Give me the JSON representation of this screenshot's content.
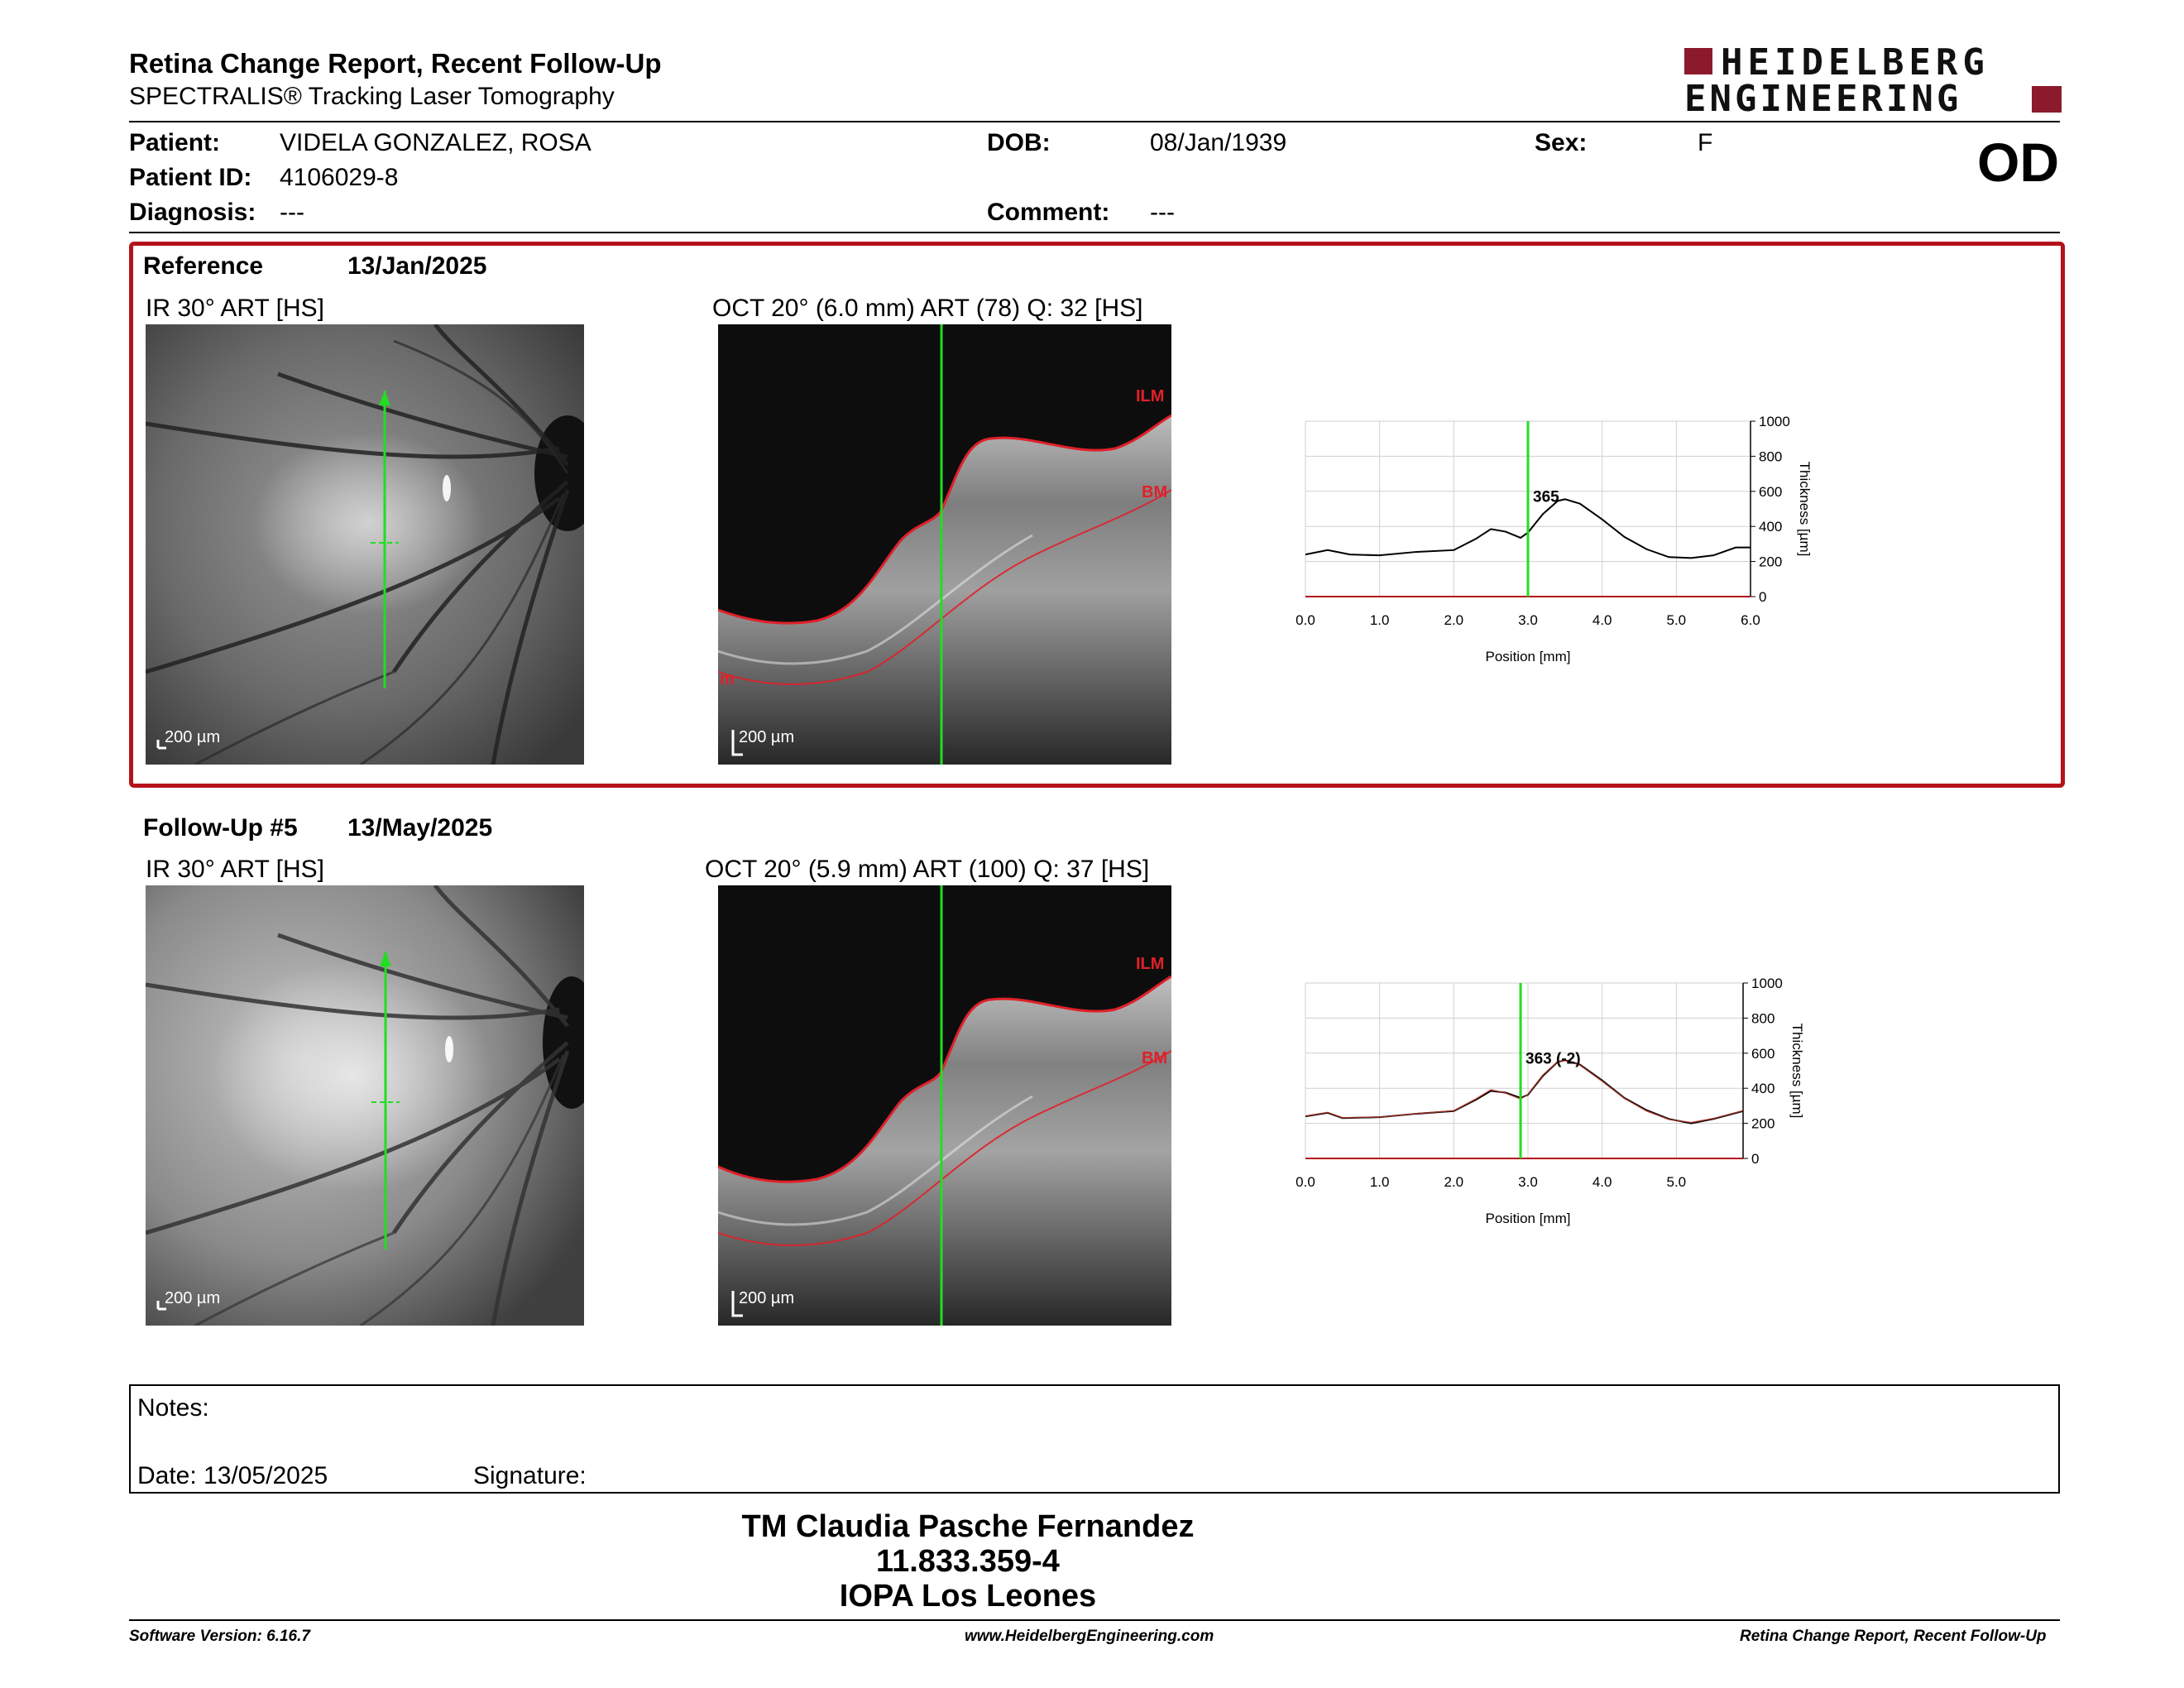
{
  "header": {
    "title": "Retina Change Report, Recent Follow-Up",
    "subtitle": "SPECTRALIS® Tracking Laser Tomography",
    "logo_line1": "HEIDELBERG",
    "logo_line2": "ENGINEERING",
    "brand_color": "#8b1a2b"
  },
  "patient": {
    "patient_label": "Patient:",
    "patient_value": "VIDELA GONZALEZ, ROSA",
    "id_label": "Patient ID:",
    "id_value": "4106029-8",
    "diagnosis_label": "Diagnosis:",
    "diagnosis_value": "---",
    "dob_label": "DOB:",
    "dob_value": "08/Jan/1939",
    "comment_label": "Comment:",
    "comment_value": "---",
    "sex_label": "Sex:",
    "sex_value": "F",
    "eye": "OD"
  },
  "reference": {
    "label": "Reference",
    "date": "13/Jan/2025",
    "ir_title": "IR 30° ART [HS]",
    "oct_title": "OCT 20° (6.0 mm) ART (78) Q: 32 [HS]",
    "scale": "200 µm",
    "ilm": "ILM",
    "bm": "BM",
    "layer_m": "m",
    "border_color": "#b5121b"
  },
  "followup": {
    "label": "Follow-Up #5",
    "date": "13/May/2025",
    "ir_title": "IR 30° ART [HS]",
    "oct_title": "OCT 20° (5.9 mm) ART (100) Q: 37 [HS]",
    "scale": "200 µm",
    "ilm": "ILM",
    "bm": "BM"
  },
  "chart_data": [
    {
      "type": "line",
      "xlabel": "Position [mm]",
      "ylabel": "Thickness [µm]",
      "xlim": [
        0,
        6.0
      ],
      "ylim": [
        0,
        1000
      ],
      "x_ticks": [
        "0.0",
        "1.0",
        "2.0",
        "3.0",
        "4.0",
        "5.0",
        "6.0"
      ],
      "y_ticks": [
        "0",
        "200",
        "400",
        "600",
        "800",
        "1000"
      ],
      "marker_x": 3.0,
      "marker_label": "365",
      "series": [
        {
          "color": "#000000",
          "x": [
            0.0,
            0.3,
            0.6,
            1.0,
            1.5,
            2.0,
            2.3,
            2.5,
            2.7,
            2.9,
            3.0,
            3.2,
            3.4,
            3.5,
            3.7,
            4.0,
            4.3,
            4.6,
            4.9,
            5.2,
            5.5,
            5.8,
            6.0
          ],
          "y": [
            240,
            265,
            240,
            235,
            255,
            265,
            330,
            385,
            370,
            335,
            365,
            470,
            545,
            555,
            530,
            440,
            340,
            270,
            225,
            220,
            235,
            280,
            280
          ]
        }
      ]
    },
    {
      "type": "line",
      "xlabel": "Position [mm]",
      "ylabel": "Thickness [µm]",
      "xlim": [
        0,
        5.9
      ],
      "ylim": [
        0,
        1000
      ],
      "x_ticks": [
        "0.0",
        "1.0",
        "2.0",
        "3.0",
        "4.0",
        "5.0"
      ],
      "y_ticks": [
        "0",
        "200",
        "400",
        "600",
        "800",
        "1000"
      ],
      "marker_x": 2.9,
      "marker_label": "363 (-2)",
      "series": [
        {
          "color": "#000000",
          "x": [
            0.0,
            0.3,
            0.5,
            1.0,
            1.5,
            2.0,
            2.3,
            2.5,
            2.7,
            2.9,
            3.0,
            3.2,
            3.4,
            3.5,
            3.7,
            4.0,
            4.3,
            4.6,
            4.9,
            5.2,
            5.5,
            5.9
          ],
          "y": [
            240,
            260,
            230,
            235,
            255,
            270,
            335,
            385,
            375,
            345,
            363,
            470,
            550,
            560,
            535,
            445,
            345,
            275,
            225,
            200,
            225,
            270
          ]
        },
        {
          "color": "#c0392b",
          "x": [
            0.0,
            0.3,
            0.5,
            1.0,
            1.5,
            2.0,
            2.3,
            2.5,
            2.7,
            2.9,
            3.0,
            3.2,
            3.4,
            3.5,
            3.7,
            4.0,
            4.3,
            4.6,
            4.9,
            5.2,
            5.5,
            5.9
          ],
          "y": [
            242,
            262,
            232,
            236,
            256,
            272,
            340,
            392,
            372,
            338,
            365,
            475,
            552,
            558,
            532,
            440,
            342,
            270,
            222,
            205,
            228,
            272
          ]
        }
      ]
    }
  ],
  "notes": {
    "notes_label": "Notes:",
    "date_label": "Date: 13/05/2025",
    "signature_label": "Signature:"
  },
  "signoff": {
    "name": "TM Claudia Pasche Fernandez",
    "id": "11.833.359-4",
    "org": "IOPA Los Leones"
  },
  "footer": {
    "software": "Software Version: 6.16.7",
    "website": "www.HeidelbergEngineering.com",
    "report": "Retina Change Report, Recent Follow-Up"
  }
}
